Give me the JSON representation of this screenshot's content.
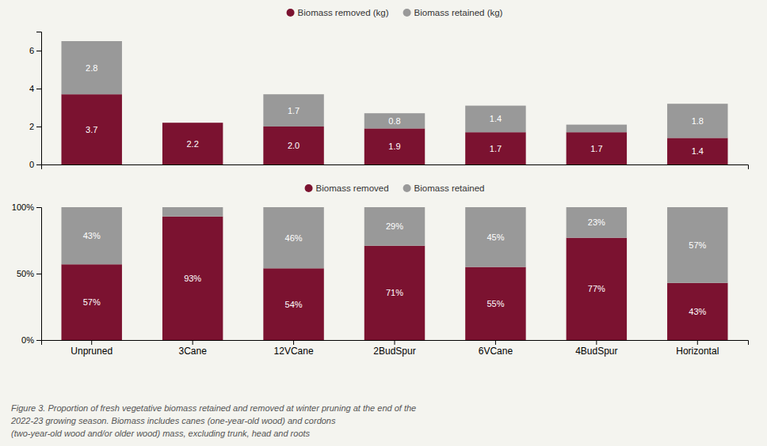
{
  "chart_data": [
    {
      "type": "bar",
      "stacked": true,
      "data_labels": true,
      "grid": false,
      "legend": "top",
      "tick_labels": "y",
      "categories": [
        "Unpruned",
        "3Cane",
        "12VCane",
        "2BudSpur",
        "6VCane",
        "4BudSpur",
        "Horizontal"
      ],
      "series": [
        {
          "name": "Biomass removed (kg)",
          "color": "#7b1230",
          "values": [
            3.7,
            2.2,
            2.0,
            1.9,
            1.7,
            1.7,
            1.4
          ],
          "value_labels": [
            "3.7",
            "2.2",
            "2.0",
            "1.9",
            "1.7",
            "1.7",
            "1.4"
          ]
        },
        {
          "name": "Biomass retained (kg)",
          "color": "#999999",
          "values": [
            2.8,
            0.0,
            1.7,
            0.8,
            1.4,
            0.4,
            1.8
          ],
          "value_labels": [
            "2.8",
            null,
            "1.7",
            "0.8",
            "1.4",
            null,
            "1.8"
          ]
        }
      ],
      "ylim": [
        0,
        7
      ],
      "yticks": [
        0,
        2,
        4,
        6
      ]
    },
    {
      "type": "bar",
      "stacked": true,
      "data_labels": true,
      "grid": false,
      "legend": "top",
      "categories": [
        "Unpruned",
        "3Cane",
        "12VCane",
        "2BudSpur",
        "6VCane",
        "4BudSpur",
        "Horizontal"
      ],
      "series": [
        {
          "name": "Biomass removed",
          "color": "#7b1230",
          "values": [
            57,
            93,
            54,
            71,
            55,
            77,
            43
          ],
          "value_labels": [
            "57%",
            "93%",
            "54%",
            "71%",
            "55%",
            "77%",
            "43%"
          ]
        },
        {
          "name": "Biomass retained",
          "color": "#999999",
          "values": [
            43,
            7,
            46,
            29,
            45,
            23,
            57
          ],
          "value_labels": [
            "43%",
            null,
            "46%",
            "29%",
            "45%",
            "23%",
            "57%"
          ]
        }
      ],
      "ylim": [
        0,
        100
      ],
      "yticks": [
        {
          "value": 0,
          "label": "0%"
        },
        {
          "value": 50,
          "label": "50%"
        },
        {
          "value": 100,
          "label": "100%"
        }
      ],
      "annotations": [
        "Figure 3. Proportion of fresh vegetative biomass retained and removed at winter pruning at the end of the",
        "2022-23 growing season. Biomass includes canes (one-year-old wood) and cordons",
        "(two-year-old wood and/or older wood) mass, excluding trunk, head and roots"
      ]
    }
  ]
}
